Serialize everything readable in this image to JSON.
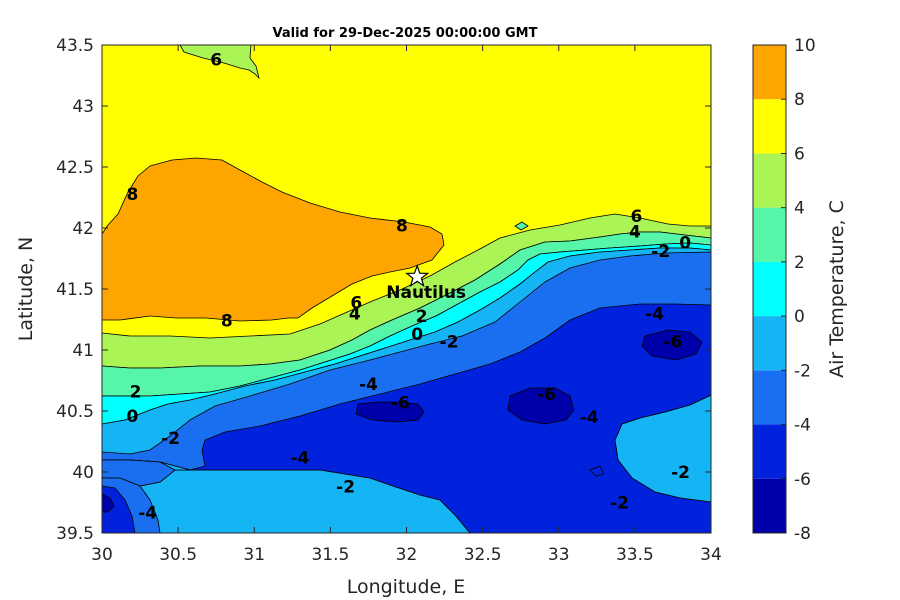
{
  "chart_data": {
    "type": "contour",
    "title": "Valid for 29-Dec-2025 00:00:00 GMT",
    "xlabel": "Longitude, E",
    "ylabel": "Latitude, N",
    "xlim": [
      30,
      34
    ],
    "ylim": [
      39.5,
      43.5
    ],
    "x_ticks": [
      "30",
      "30.5",
      "31",
      "31.5",
      "32",
      "32.5",
      "33",
      "33.5",
      "34"
    ],
    "y_ticks": [
      "39.5",
      "40",
      "40.5",
      "41",
      "41.5",
      "42",
      "42.5",
      "43",
      "43.5"
    ],
    "colorbar": {
      "label": "Air Temperature, C",
      "range": [
        -8,
        10
      ],
      "levels": [
        -8,
        -6,
        -4,
        -2,
        0,
        2,
        4,
        6,
        8,
        10
      ],
      "tick_labels": [
        "-8",
        "-6",
        "-4",
        "-2",
        "0",
        "2",
        "4",
        "6",
        "8",
        "10"
      ],
      "colors": [
        "#0000aa",
        "#0022dd",
        "#1a6ff0",
        "#14b4f5",
        "#00ffff",
        "#55f5aa",
        "#aaf555",
        "#ffff00",
        "#ffa500",
        "#ff5500"
      ]
    },
    "station": {
      "name": "Nautilus",
      "lon": 32.07,
      "lat": 41.6
    },
    "contour_labels": [
      {
        "text": "6",
        "lon": 30.75,
        "lat": 43.38
      },
      {
        "text": "8",
        "lon": 30.2,
        "lat": 42.28
      },
      {
        "text": "8",
        "lon": 31.97,
        "lat": 42.02
      },
      {
        "text": "8",
        "lon": 30.82,
        "lat": 41.24
      },
      {
        "text": "6",
        "lon": 33.51,
        "lat": 42.1
      },
      {
        "text": "4",
        "lon": 33.5,
        "lat": 41.97
      },
      {
        "text": "0",
        "lon": 33.83,
        "lat": 41.88
      },
      {
        "text": "-2",
        "lon": 33.67,
        "lat": 41.81
      },
      {
        "text": "6",
        "lon": 31.67,
        "lat": 41.39
      },
      {
        "text": "4",
        "lon": 31.66,
        "lat": 41.3
      },
      {
        "text": "2",
        "lon": 32.1,
        "lat": 41.28
      },
      {
        "text": "0",
        "lon": 32.07,
        "lat": 41.13
      },
      {
        "text": "-2",
        "lon": 32.28,
        "lat": 41.07
      },
      {
        "text": "-4",
        "lon": 33.63,
        "lat": 41.3
      },
      {
        "text": "-6",
        "lon": 33.75,
        "lat": 41.07
      },
      {
        "text": "2",
        "lon": 30.22,
        "lat": 40.66
      },
      {
        "text": "0",
        "lon": 30.2,
        "lat": 40.46
      },
      {
        "text": "-4",
        "lon": 31.75,
        "lat": 40.72
      },
      {
        "text": "-6",
        "lon": 31.96,
        "lat": 40.57
      },
      {
        "text": "-6",
        "lon": 32.92,
        "lat": 40.64
      },
      {
        "text": "-4",
        "lon": 33.2,
        "lat": 40.45
      },
      {
        "text": "-2",
        "lon": 30.45,
        "lat": 40.28
      },
      {
        "text": "-4",
        "lon": 31.3,
        "lat": 40.12
      },
      {
        "text": "-2",
        "lon": 31.6,
        "lat": 39.88
      },
      {
        "text": "-2",
        "lon": 33.8,
        "lat": 40.0
      },
      {
        "text": "-2",
        "lon": 33.4,
        "lat": 39.75
      },
      {
        "text": "-4",
        "lon": 30.3,
        "lat": 39.67
      }
    ]
  }
}
